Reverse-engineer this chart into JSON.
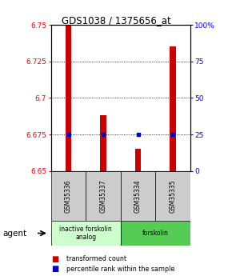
{
  "title": "GDS1038 / 1375656_at",
  "samples": [
    "GSM35336",
    "GSM35337",
    "GSM35334",
    "GSM35335"
  ],
  "bar_values": [
    6.75,
    6.688,
    6.665,
    6.735
  ],
  "percentile_values": [
    6.675,
    6.675,
    6.675,
    6.675
  ],
  "ylim": [
    6.65,
    6.75
  ],
  "y_ticks_left": [
    6.65,
    6.675,
    6.7,
    6.725,
    6.75
  ],
  "y_ticks_right": [
    0,
    25,
    50,
    75,
    100
  ],
  "bar_color": "#cc0000",
  "percentile_color": "#0000cc",
  "bar_width": 0.18,
  "groups": [
    {
      "label": "inactive forskolin\nanalog",
      "samples": [
        0,
        1
      ],
      "color": "#ccffcc"
    },
    {
      "label": "forskolin",
      "samples": [
        2,
        3
      ],
      "color": "#55cc55"
    }
  ],
  "agent_label": "agent",
  "legend_bar_label": "transformed count",
  "legend_pct_label": "percentile rank within the sample",
  "background_color": "#ffffff"
}
